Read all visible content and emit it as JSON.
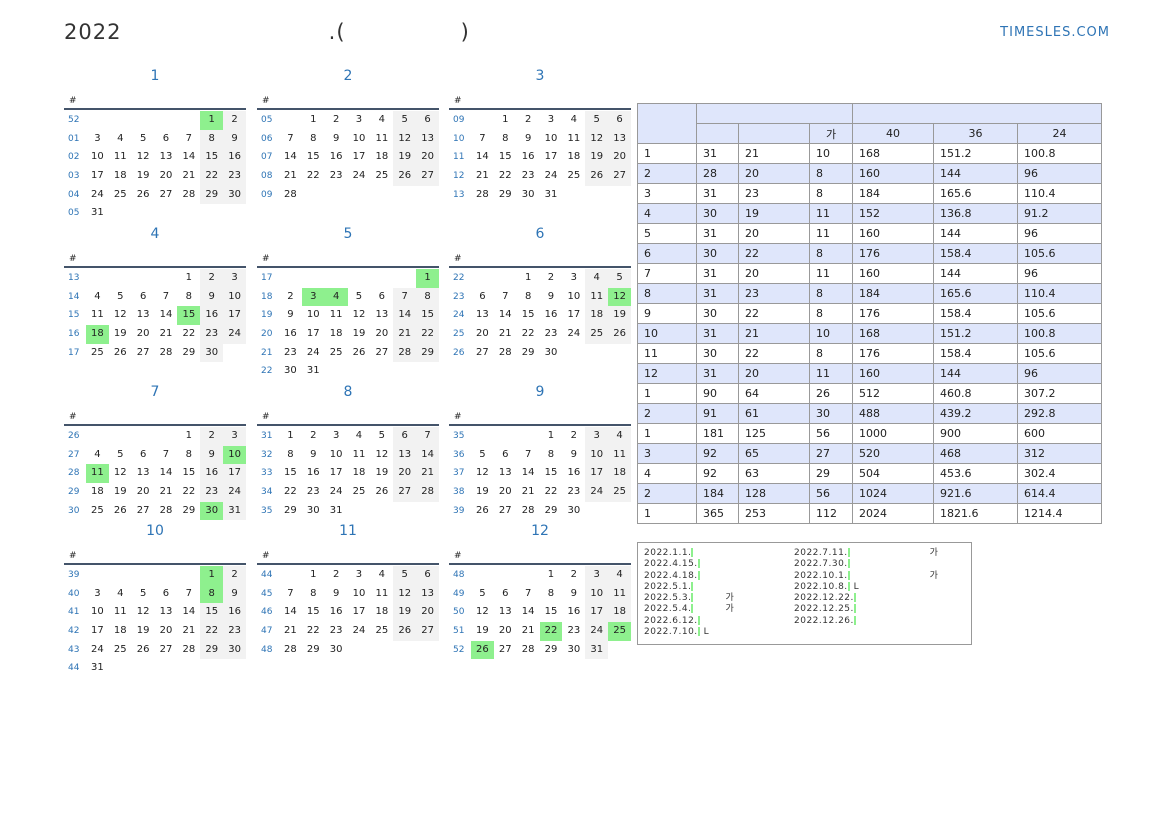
{
  "header": {
    "title": "2022                           .(               )",
    "brand": "TIMESLES.COM"
  },
  "week_header": "#",
  "months": [
    {
      "name": "1",
      "start_dow": 5,
      "days": 31,
      "weeks": [
        "52",
        "01",
        "02",
        "03",
        "04",
        "05"
      ],
      "holidays": [
        1
      ]
    },
    {
      "name": "2",
      "start_dow": 1,
      "days": 28,
      "weeks": [
        "05",
        "06",
        "07",
        "08",
        "09"
      ],
      "holidays": []
    },
    {
      "name": "3",
      "start_dow": 1,
      "days": 31,
      "weeks": [
        "09",
        "10",
        "11",
        "12",
        "13"
      ],
      "holidays": []
    },
    {
      "name": "4",
      "start_dow": 4,
      "days": 30,
      "weeks": [
        "13",
        "14",
        "15",
        "16",
        "17"
      ],
      "holidays": [
        15,
        18
      ]
    },
    {
      "name": "5",
      "start_dow": 6,
      "days": 31,
      "weeks": [
        "17",
        "18",
        "19",
        "20",
        "21",
        "22"
      ],
      "holidays": [
        1,
        3,
        4
      ]
    },
    {
      "name": "6",
      "start_dow": 2,
      "days": 30,
      "weeks": [
        "22",
        "23",
        "24",
        "25",
        "26"
      ],
      "holidays": [
        12
      ]
    },
    {
      "name": "7",
      "start_dow": 4,
      "days": 31,
      "weeks": [
        "26",
        "27",
        "28",
        "29",
        "30"
      ],
      "holidays": [
        10,
        11,
        30
      ]
    },
    {
      "name": "8",
      "start_dow": 0,
      "days": 31,
      "weeks": [
        "31",
        "32",
        "33",
        "34",
        "35"
      ],
      "holidays": []
    },
    {
      "name": "9",
      "start_dow": 3,
      "days": 30,
      "weeks": [
        "35",
        "36",
        "37",
        "38",
        "39"
      ],
      "holidays": []
    },
    {
      "name": "10",
      "start_dow": 5,
      "days": 31,
      "weeks": [
        "39",
        "40",
        "41",
        "42",
        "43",
        "44"
      ],
      "holidays": [
        1,
        8
      ]
    },
    {
      "name": "11",
      "start_dow": 1,
      "days": 30,
      "weeks": [
        "44",
        "45",
        "46",
        "47",
        "48"
      ],
      "holidays": []
    },
    {
      "name": "12",
      "start_dow": 3,
      "days": 31,
      "weeks": [
        "48",
        "49",
        "50",
        "51",
        "52"
      ],
      "holidays": [
        22,
        25,
        26
      ]
    }
  ],
  "summary": {
    "headers": [
      "",
      "",
      "",
      "가",
      "40",
      "36",
      "24"
    ],
    "rows": [
      [
        "1",
        "31",
        "21",
        "10",
        "168",
        "151.2",
        "100.8"
      ],
      [
        "2",
        "28",
        "20",
        "8",
        "160",
        "144",
        "96"
      ],
      [
        "3",
        "31",
        "23",
        "8",
        "184",
        "165.6",
        "110.4"
      ],
      [
        "4",
        "30",
        "19",
        "11",
        "152",
        "136.8",
        "91.2"
      ],
      [
        "5",
        "31",
        "20",
        "11",
        "160",
        "144",
        "96"
      ],
      [
        "6",
        "30",
        "22",
        "8",
        "176",
        "158.4",
        "105.6"
      ],
      [
        "7",
        "31",
        "20",
        "11",
        "160",
        "144",
        "96"
      ],
      [
        "8",
        "31",
        "23",
        "8",
        "184",
        "165.6",
        "110.4"
      ],
      [
        "9",
        "30",
        "22",
        "8",
        "176",
        "158.4",
        "105.6"
      ],
      [
        "10",
        "31",
        "21",
        "10",
        "168",
        "151.2",
        "100.8"
      ],
      [
        "11",
        "30",
        "22",
        "8",
        "176",
        "158.4",
        "105.6"
      ],
      [
        "12",
        "31",
        "20",
        "11",
        "160",
        "144",
        "96"
      ],
      [
        "1",
        "90",
        "64",
        "26",
        "512",
        "460.8",
        "307.2"
      ],
      [
        "2",
        "91",
        "61",
        "30",
        "488",
        "439.2",
        "292.8"
      ],
      [
        "1",
        "181",
        "125",
        "56",
        "1000",
        "900",
        "600"
      ],
      [
        "3",
        "92",
        "65",
        "27",
        "520",
        "468",
        "312"
      ],
      [
        "4",
        "92",
        "63",
        "29",
        "504",
        "453.6",
        "302.4"
      ],
      [
        "2",
        "184",
        "128",
        "56",
        "1024",
        "921.6",
        "614.4"
      ],
      [
        "1",
        "365",
        "253",
        "112",
        "2024",
        "1821.6",
        "1214.4"
      ]
    ]
  },
  "holidays_list": {
    "left": [
      {
        "date": "2022.1.1.",
        "name": ""
      },
      {
        "date": "2022.4.15.",
        "name": ""
      },
      {
        "date": "2022.4.18.",
        "name": ""
      },
      {
        "date": "2022.5.1.",
        "name": ""
      },
      {
        "date": "2022.5.3.",
        "name": "가"
      },
      {
        "date": "2022.5.4.",
        "name": "가"
      },
      {
        "date": "2022.6.12.",
        "name": ""
      },
      {
        "date": "2022.7.10.",
        "name": "L"
      }
    ],
    "right": [
      {
        "date": "2022.7.11.",
        "name": "가"
      },
      {
        "date": "2022.7.30.",
        "name": ""
      },
      {
        "date": "2022.10.1.",
        "name": "가"
      },
      {
        "date": "2022.10.8.",
        "name": "L"
      },
      {
        "date": "2022.12.22.",
        "name": ""
      },
      {
        "date": "2022.12.25.",
        "name": ""
      },
      {
        "date": "2022.12.26.",
        "name": ""
      }
    ]
  }
}
